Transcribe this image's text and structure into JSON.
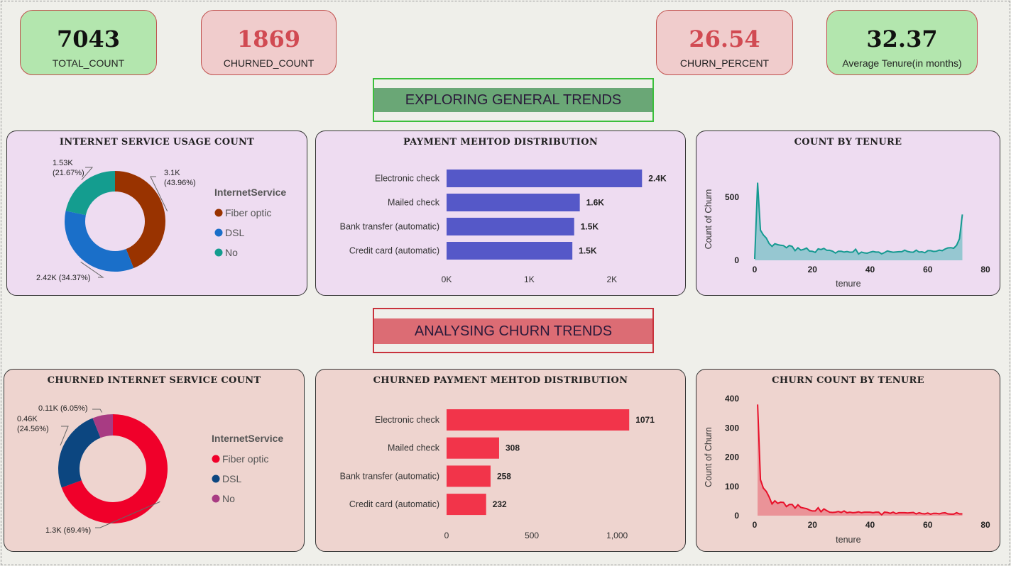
{
  "kpis": {
    "total_count": {
      "value": "7043",
      "label": "TOTAL_COUNT"
    },
    "churned_count": {
      "value": "1869",
      "label": "CHURNED_COUNT"
    },
    "churn_percent": {
      "value": "26.54",
      "label": "CHURN_PERCENT"
    },
    "avg_tenure": {
      "value": "32.37",
      "label": "Average Tenure(in months)"
    }
  },
  "sections": {
    "general": "EXPLORING GENERAL TRENDS",
    "churn": "ANALYSING CHURN TRENDS"
  },
  "colors": {
    "fiber": "#993300",
    "dsl": "#1a6fc9",
    "no": "#149d8f",
    "churn_fiber": "#f0002a",
    "churn_dsl": "#0c4680",
    "churn_no": "#a83b83",
    "bar_general": "#5558c8",
    "bar_churn": "#f2344a",
    "area_general_line": "#159a91",
    "area_general_fill": "#7fc2c9",
    "area_churn_line": "#e8102a",
    "area_churn_fill": "#e8828a"
  },
  "chart_data": [
    {
      "type": "pie",
      "title": "INTERNET SERVICE USAGE COUNT",
      "legend_title": "InternetService",
      "legend_position": "right",
      "categories": [
        "Fiber optic",
        "DSL",
        "No"
      ],
      "values": [
        3096,
        2421,
        1526
      ],
      "labels": [
        "3.1K\n(43.96%)",
        "2.42K (34.37%)",
        "1.53K\n(21.67%)"
      ]
    },
    {
      "type": "bar",
      "title": "PAYMENT MEHTOD DISTRIBUTION",
      "categories": [
        "Electronic check",
        "Mailed check",
        "Bank transfer (automatic)",
        "Credit card (automatic)"
      ],
      "values": [
        2365,
        1612,
        1544,
        1522
      ],
      "data_labels": [
        "2.4K",
        "1.6K",
        "1.5K",
        "1.5K"
      ],
      "xticks": [
        0,
        1000,
        2000
      ],
      "xtick_labels": [
        "0K",
        "1K",
        "2K"
      ],
      "xlim": [
        0,
        2500
      ]
    },
    {
      "type": "area",
      "title": "COUNT BY TENURE",
      "xlabel": "tenure",
      "ylabel": "Count of Churn",
      "xlim": [
        0,
        80
      ],
      "ylim": [
        0,
        650
      ],
      "xticks": [
        0,
        20,
        40,
        60,
        80
      ],
      "yticks": [
        0,
        500
      ],
      "x": [
        0,
        1,
        2,
        3,
        4,
        5,
        6,
        7,
        8,
        9,
        10,
        11,
        12,
        13,
        14,
        15,
        16,
        17,
        18,
        19,
        20,
        21,
        22,
        23,
        24,
        25,
        26,
        27,
        28,
        29,
        30,
        31,
        32,
        33,
        34,
        35,
        36,
        37,
        38,
        39,
        40,
        41,
        42,
        43,
        44,
        45,
        46,
        47,
        48,
        49,
        50,
        51,
        52,
        53,
        54,
        55,
        56,
        57,
        58,
        59,
        60,
        61,
        62,
        63,
        64,
        65,
        66,
        67,
        68,
        69,
        70,
        71,
        72
      ],
      "y": [
        11,
        613,
        238,
        200,
        176,
        133,
        110,
        131,
        123,
        119,
        116,
        99,
        117,
        109,
        76,
        99,
        80,
        87,
        97,
        73,
        71,
        63,
        90,
        85,
        94,
        79,
        79,
        72,
        57,
        72,
        72,
        65,
        69,
        64,
        65,
        88,
        50,
        65,
        59,
        56,
        64,
        70,
        65,
        65,
        51,
        61,
        74,
        68,
        64,
        66,
        68,
        68,
        80,
        70,
        65,
        64,
        80,
        65,
        67,
        60,
        76,
        76,
        70,
        72,
        80,
        76,
        89,
        98,
        100,
        95,
        119,
        170,
        362
      ]
    },
    {
      "type": "pie",
      "title": "CHURNED INTERNET SERVICE COUNT",
      "legend_title": "InternetService",
      "legend_position": "right",
      "categories": [
        "Fiber optic",
        "DSL",
        "No"
      ],
      "values": [
        1297,
        459,
        113
      ],
      "labels": [
        "1.3K (69.4%)",
        "0.46K\n(24.56%)",
        "0.11K (6.05%)"
      ]
    },
    {
      "type": "bar",
      "title": "CHURNED PAYMENT MEHTOD DISTRIBUTION",
      "categories": [
        "Electronic check",
        "Mailed check",
        "Bank transfer (automatic)",
        "Credit card (automatic)"
      ],
      "values": [
        1071,
        308,
        258,
        232
      ],
      "data_labels": [
        "1071",
        "308",
        "258",
        "232"
      ],
      "xticks": [
        0,
        500,
        1000
      ],
      "xtick_labels": [
        "0",
        "500",
        "1,000"
      ],
      "xlim": [
        0,
        1220
      ]
    },
    {
      "type": "area",
      "title": "CHURN COUNT BY TENURE",
      "xlabel": "tenure",
      "ylabel": "Count of Churn",
      "xlim": [
        0,
        80
      ],
      "ylim": [
        0,
        400
      ],
      "xticks": [
        0,
        20,
        40,
        60,
        80
      ],
      "yticks": [
        0,
        100,
        200,
        300,
        400
      ],
      "x": [
        1,
        2,
        3,
        4,
        5,
        6,
        7,
        8,
        9,
        10,
        11,
        12,
        13,
        14,
        15,
        16,
        17,
        18,
        19,
        20,
        21,
        22,
        23,
        24,
        25,
        26,
        27,
        28,
        29,
        30,
        31,
        32,
        33,
        34,
        35,
        36,
        37,
        38,
        39,
        40,
        41,
        42,
        43,
        44,
        45,
        46,
        47,
        48,
        49,
        50,
        51,
        52,
        53,
        54,
        55,
        56,
        57,
        58,
        59,
        60,
        61,
        62,
        63,
        64,
        65,
        66,
        67,
        68,
        69,
        70,
        71,
        72
      ],
      "y": [
        380,
        123,
        94,
        83,
        64,
        40,
        51,
        42,
        46,
        45,
        31,
        38,
        38,
        26,
        37,
        28,
        26,
        24,
        19,
        16,
        16,
        27,
        13,
        23,
        17,
        12,
        11,
        12,
        14,
        11,
        16,
        10,
        12,
        10,
        11,
        13,
        10,
        12,
        12,
        12,
        10,
        12,
        12,
        3,
        12,
        11,
        8,
        12,
        7,
        10,
        10,
        10,
        9,
        10,
        11,
        6,
        10,
        7,
        6,
        9,
        5,
        8,
        8,
        6,
        9,
        10,
        6,
        5,
        5,
        10,
        6,
        6
      ]
    }
  ]
}
